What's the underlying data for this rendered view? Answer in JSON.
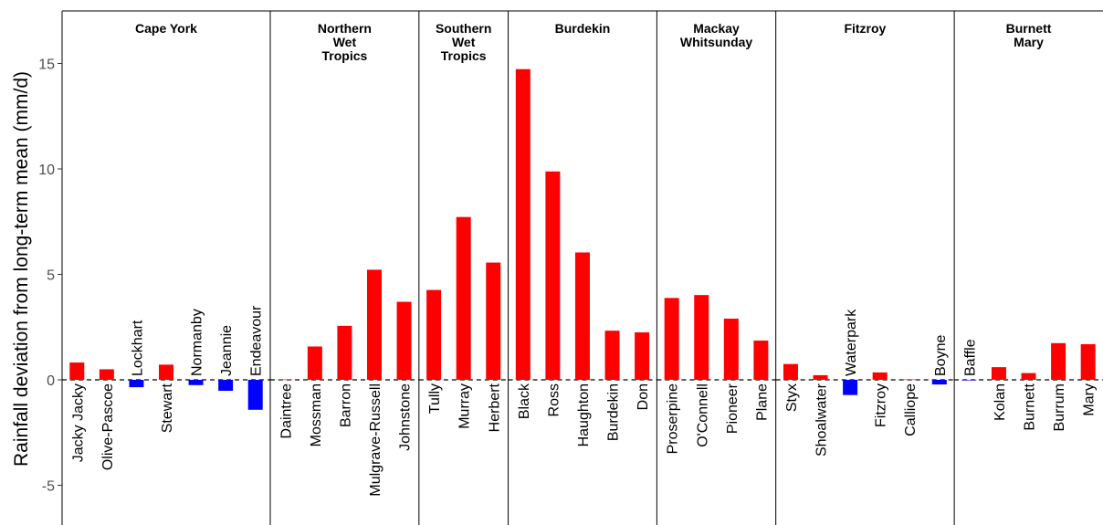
{
  "chart_data": {
    "type": "bar",
    "ylabel": "Rainfall deviation from long-term mean (mm/d)",
    "ylim": [
      -6.8,
      17.3
    ],
    "yticks": [
      -5,
      0,
      5,
      10,
      15
    ],
    "colors": {
      "positive": "#ff0000",
      "negative": "#0000ff",
      "zero_line": "#000000",
      "divider": "#000000"
    },
    "panels": [
      {
        "title": [
          "Cape York"
        ],
        "categories": [
          "Jacky Jacky",
          "Olive-Pascoe",
          "Lockhart",
          "Stewart",
          "Normanby",
          "Jeannie",
          "Endeavour"
        ],
        "values": [
          0.82,
          0.5,
          -0.35,
          0.72,
          -0.25,
          -0.52,
          -1.42
        ]
      },
      {
        "title": [
          "Northern",
          "Wet",
          "Tropics"
        ],
        "categories": [
          "Daintree",
          "Mossman",
          "Barron",
          "Mulgrave-Russell",
          "Johnstone"
        ],
        "values": [
          0.02,
          1.58,
          2.56,
          5.22,
          3.7
        ]
      },
      {
        "title": [
          "Southern",
          "Wet",
          "Tropics"
        ],
        "categories": [
          "Tully",
          "Murray",
          "Herbert"
        ],
        "values": [
          4.26,
          7.72,
          5.56
        ]
      },
      {
        "title": [
          "Burdekin"
        ],
        "categories": [
          "Black",
          "Ross",
          "Haughton",
          "Burdekin",
          "Don"
        ],
        "values": [
          14.73,
          9.88,
          6.04,
          2.33,
          2.25
        ]
      },
      {
        "title": [
          "Mackay",
          "Whitsunday"
        ],
        "categories": [
          "Proserpine",
          "O'Connell",
          "Pioneer",
          "Plane"
        ],
        "values": [
          3.88,
          4.02,
          2.9,
          1.86
        ]
      },
      {
        "title": [
          "Fitzroy"
        ],
        "categories": [
          "Styx",
          "Shoalwater",
          "Waterpark",
          "Fitzroy",
          "Calliope",
          "Boyne"
        ],
        "values": [
          0.75,
          0.22,
          -0.72,
          0.35,
          0.02,
          -0.22
        ]
      },
      {
        "title": [
          "Burnett",
          "Mary"
        ],
        "categories": [
          "Baffle",
          "Kolan",
          "Burnett",
          "Burrum",
          "Mary"
        ],
        "values": [
          -0.02,
          0.6,
          0.32,
          1.74,
          1.69
        ]
      }
    ]
  }
}
